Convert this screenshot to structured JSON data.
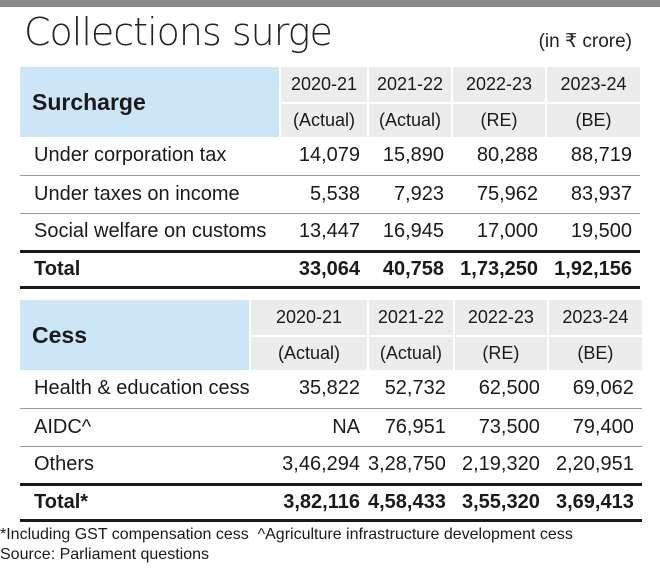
{
  "title": "Collections surge",
  "unit": "(in ₹ crore)",
  "surcharge": {
    "heading": "Surcharge",
    "years": [
      "2020-21",
      "2021-22",
      "2022-23",
      "2023-24"
    ],
    "types": [
      "(Actual)",
      "(Actual)",
      "(RE)",
      "(BE)"
    ],
    "rows": [
      {
        "label": "Under corporation tax",
        "values": [
          "14,079",
          "15,890",
          "80,288",
          "88,719"
        ]
      },
      {
        "label": "Under taxes on income",
        "values": [
          "5,538",
          "7,923",
          "75,962",
          "83,937"
        ]
      },
      {
        "label": "Social welfare on customs",
        "values": [
          "13,447",
          "16,945",
          "17,000",
          "19,500"
        ]
      }
    ],
    "total": {
      "label": "Total",
      "values": [
        "33,064",
        "40,758",
        "1,73,250",
        "1,92,156"
      ]
    }
  },
  "cess": {
    "heading": "Cess",
    "years": [
      "2020-21",
      "2021-22",
      "2022-23",
      "2023-24"
    ],
    "types": [
      "(Actual)",
      "(Actual)",
      "(RE)",
      "(BE)"
    ],
    "rows": [
      {
        "label": "Health & education cess",
        "values": [
          "35,822",
          "52,732",
          "62,500",
          "69,062"
        ]
      },
      {
        "label": "AIDC^",
        "values": [
          "NA",
          "76,951",
          "73,500",
          "79,400"
        ]
      },
      {
        "label": "Others",
        "values": [
          "3,46,294",
          "3,28,750",
          "2,19,320",
          "2,20,951"
        ]
      }
    ],
    "total": {
      "label": "Total*",
      "values": [
        "3,82,116",
        "4,58,433",
        "3,55,320",
        "3,69,413"
      ]
    }
  },
  "footnote": "*Including GST compensation cess  ^Agriculture infrastructure development cess",
  "source": "Source: Parliament questions"
}
